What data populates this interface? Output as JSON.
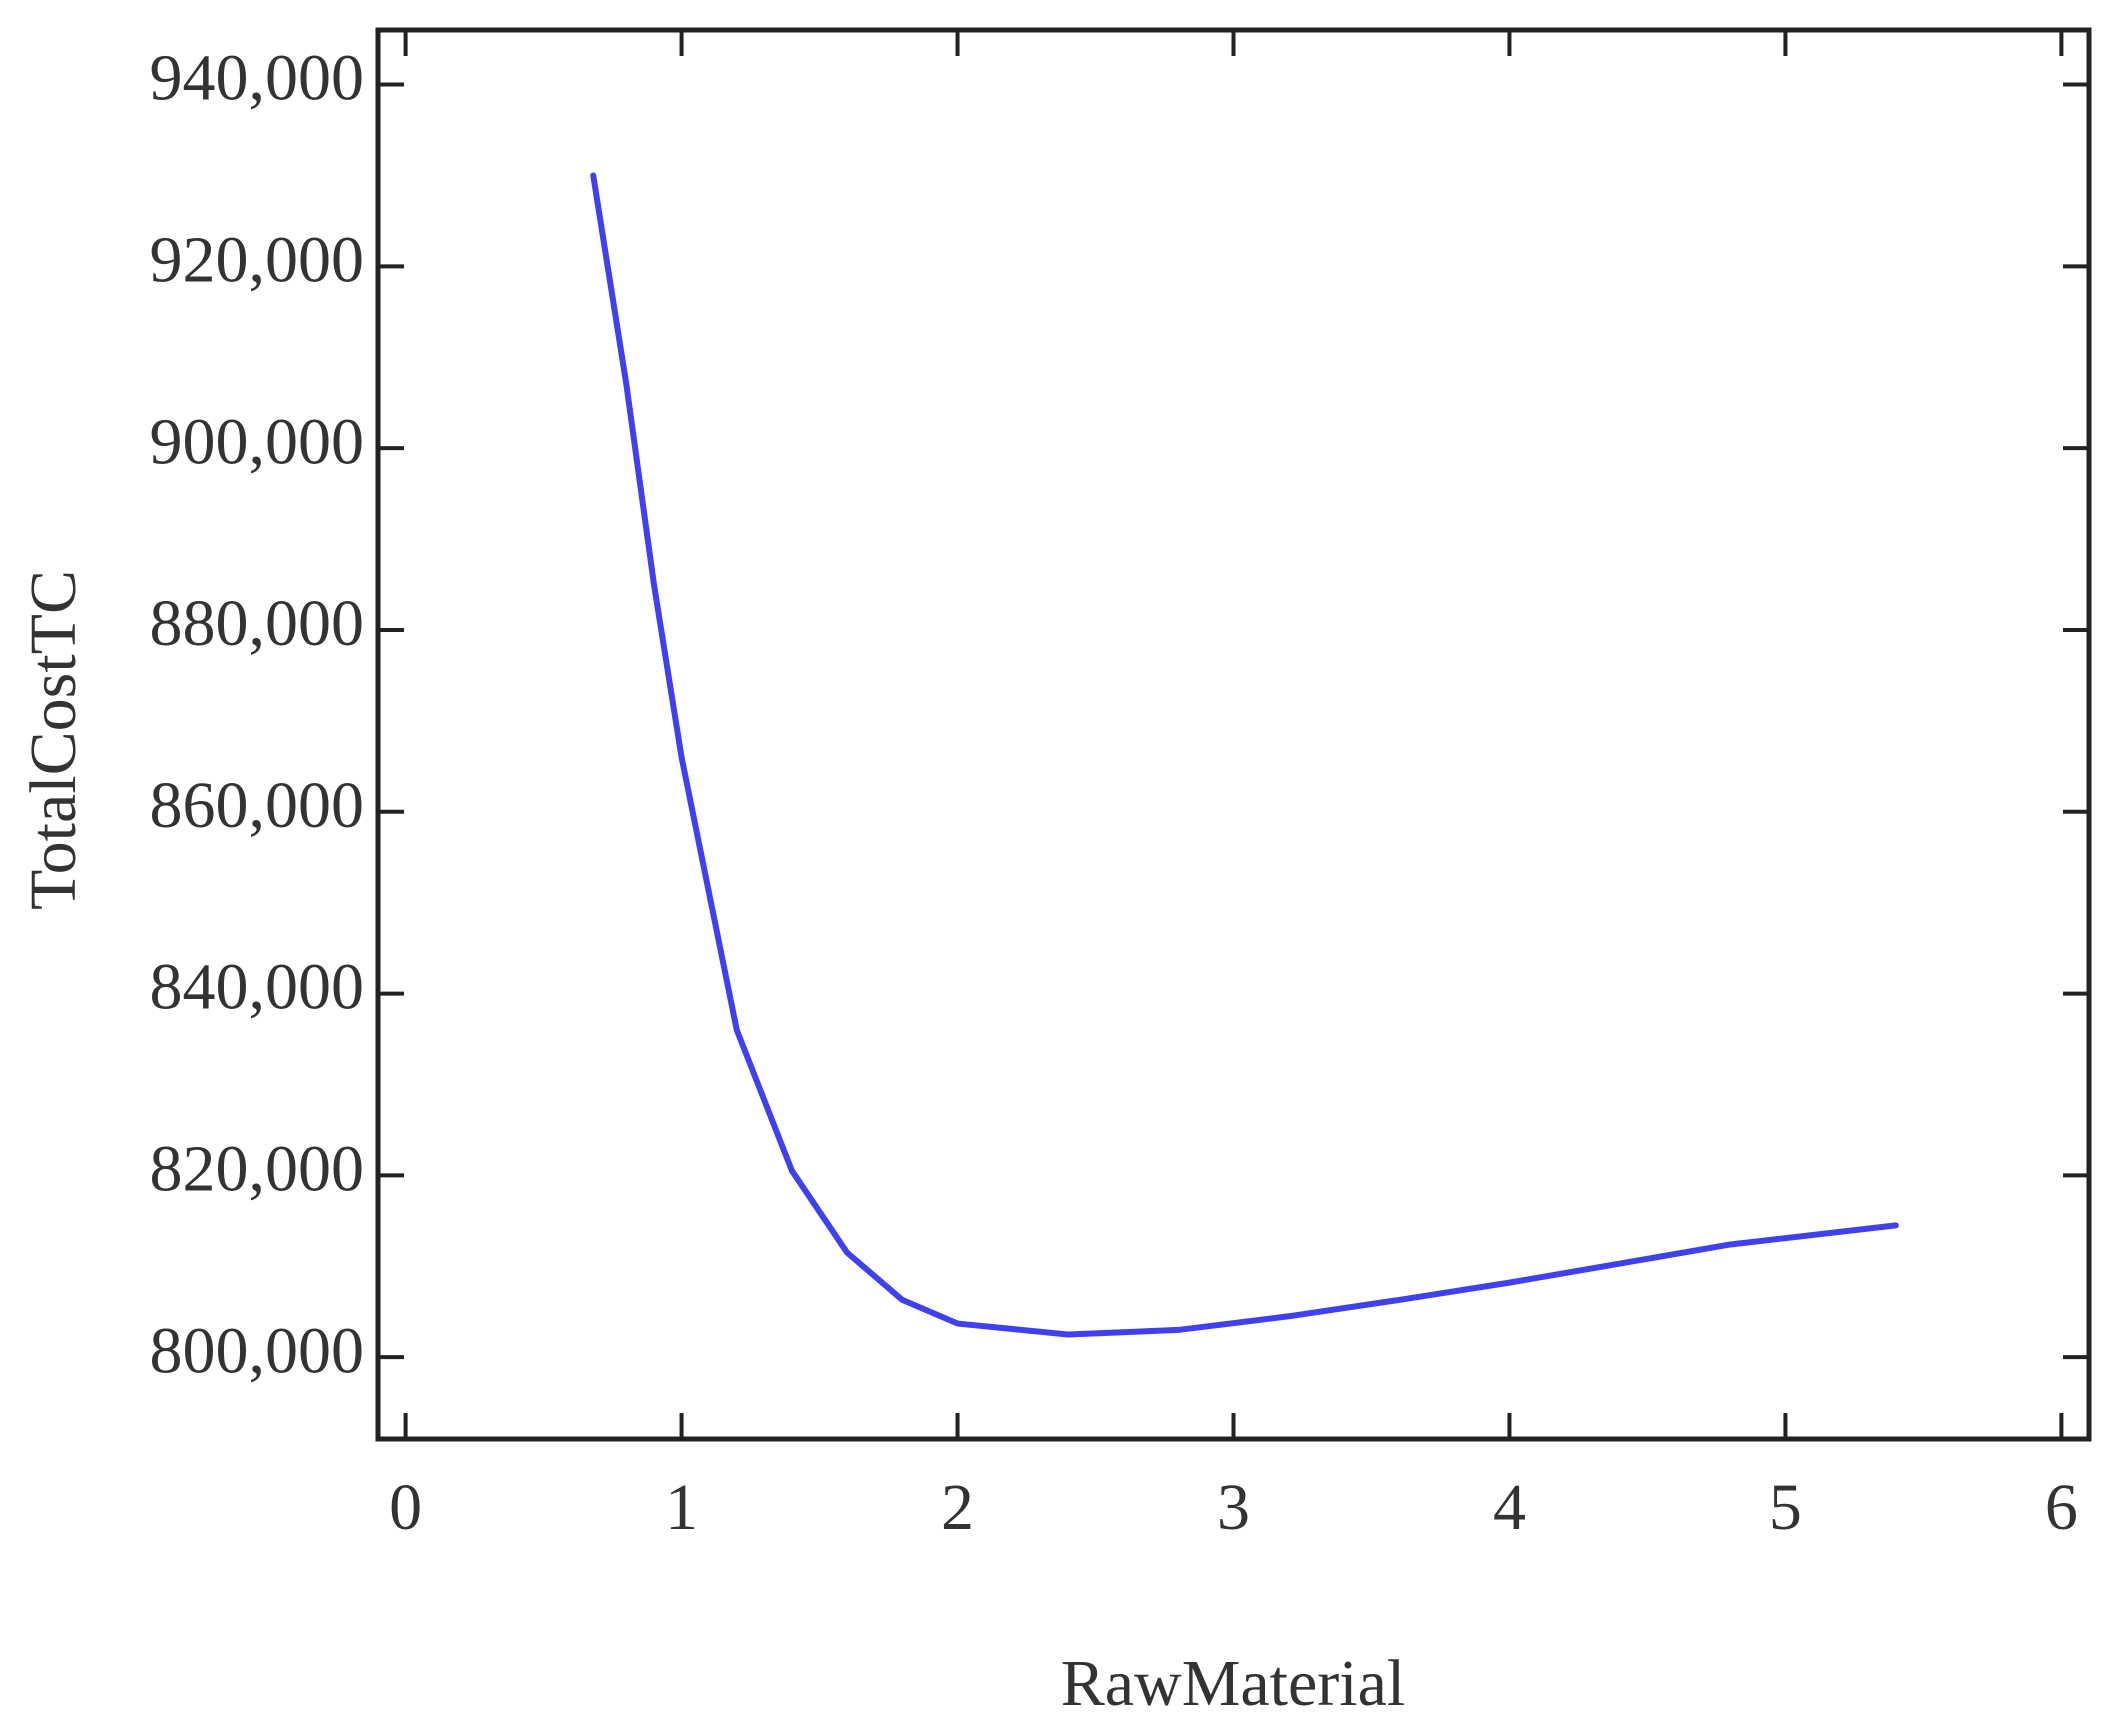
{
  "chart_data": {
    "type": "line",
    "x_label": "RawMaterial",
    "y_label": "TotalCostTC",
    "x": [
      0.68,
      0.8,
      0.9,
      1.0,
      1.2,
      1.4,
      1.6,
      1.8,
      2.0,
      2.4,
      2.8,
      3.2,
      3.6,
      4.0,
      4.4,
      4.8,
      5.4
    ],
    "series": [
      {
        "color": "#4040ee",
        "values": [
          930000,
          907000,
          885000,
          866000,
          836000,
          820500,
          811500,
          806300,
          803700,
          802500,
          803000,
          804500,
          806300,
          808200,
          810300,
          812400,
          814500
        ]
      }
    ],
    "xlim": [
      -0.1,
      6.1
    ],
    "ylim": [
      791000,
      946000
    ],
    "xticks": [
      0,
      1,
      2,
      3,
      4,
      5,
      6
    ],
    "yticks": [
      {
        "value": 800000,
        "label": "800,000"
      },
      {
        "value": 820000,
        "label": "820,000"
      },
      {
        "value": 840000,
        "label": "840,000"
      },
      {
        "value": 860000,
        "label": "860,000"
      },
      {
        "value": 880000,
        "label": "880,000"
      },
      {
        "value": 900000,
        "label": "900,000"
      },
      {
        "value": 920000,
        "label": "920,000"
      },
      {
        "value": 940000,
        "label": "940,000"
      }
    ]
  }
}
